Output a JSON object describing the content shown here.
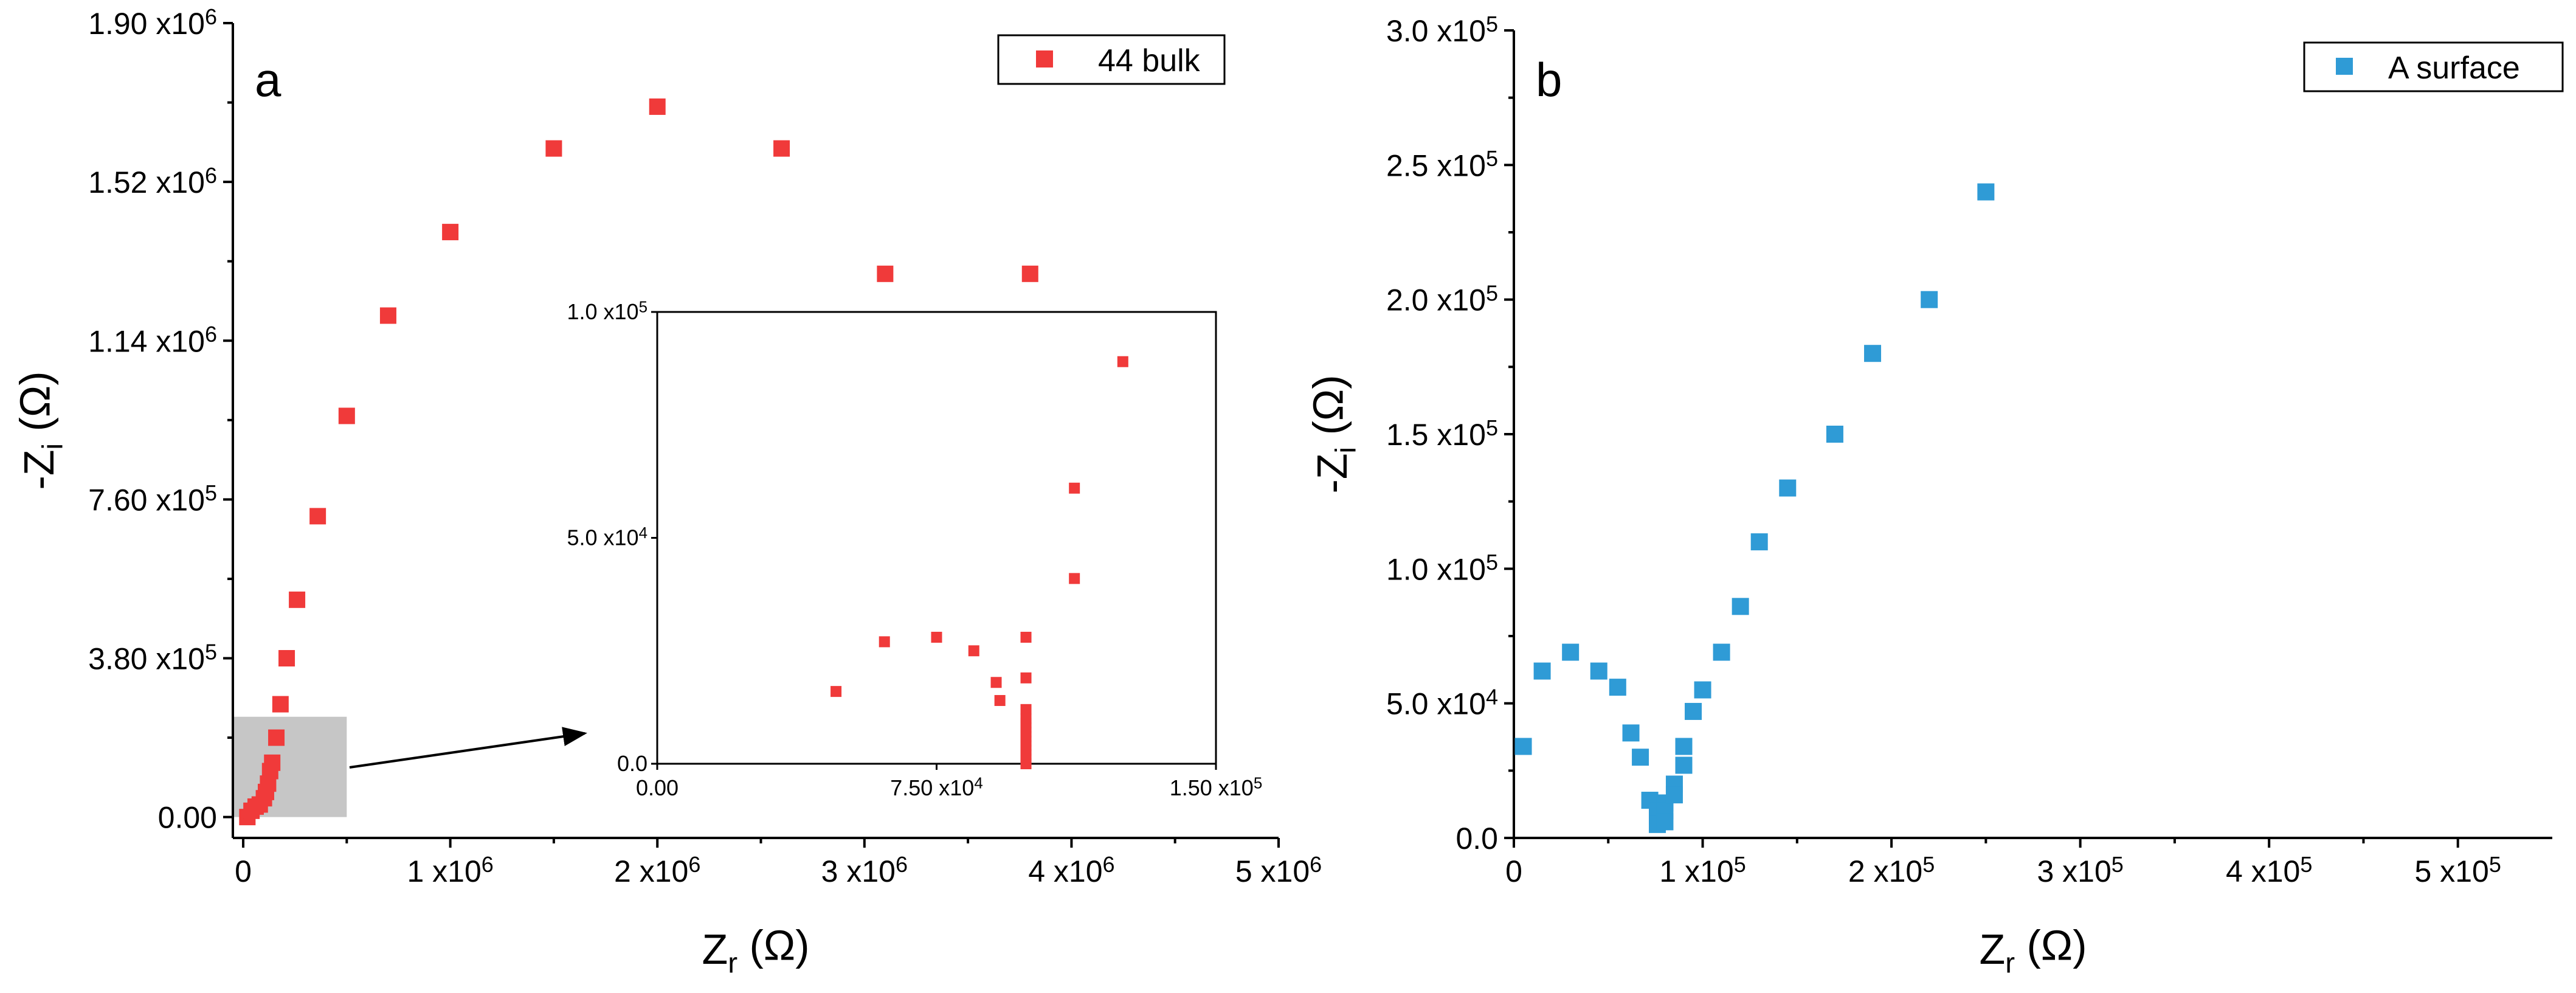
{
  "chart_data": [
    {
      "type": "scatter",
      "panel_label": "a",
      "xlabel_main": "Z",
      "xlabel_sub": "r",
      "xlabel_unit": " (Ω)",
      "ylabel_main": "-Z",
      "ylabel_sub": "i",
      "ylabel_unit": " (Ω)",
      "xlim": [
        -50000,
        5000000
      ],
      "ylim": [
        -50000,
        1900000
      ],
      "x_ticks": [
        {
          "value": 0,
          "label": "0"
        },
        {
          "value": 1000000,
          "label": "1 x10",
          "exp": "6"
        },
        {
          "value": 2000000,
          "label": "2 x10",
          "exp": "6"
        },
        {
          "value": 3000000,
          "label": "3 x10",
          "exp": "6"
        },
        {
          "value": 4000000,
          "label": "4 x10",
          "exp": "6"
        },
        {
          "value": 5000000,
          "label": "5 x10",
          "exp": "6"
        }
      ],
      "y_ticks": [
        {
          "value": 0,
          "label": "0.00"
        },
        {
          "value": 380000,
          "label": "3.80 x10",
          "exp": "5"
        },
        {
          "value": 760000,
          "label": "7.60 x10",
          "exp": "5"
        },
        {
          "value": 1140000,
          "label": "1.14 x10",
          "exp": "6"
        },
        {
          "value": 1520000,
          "label": "1.52 x10",
          "exp": "6"
        },
        {
          "value": 1900000,
          "label": "1.90 x10",
          "exp": "6"
        }
      ],
      "legend_label": "44 bulk",
      "legend_position": "top-right",
      "color": "#f03a3a",
      "series": [
        {
          "name": "44 bulk",
          "x": [
            20000,
            40000,
            60000,
            80000,
            100000,
            110000,
            120000,
            130000,
            140000,
            160000,
            180000,
            210000,
            260000,
            360000,
            500000,
            700000,
            1000000,
            1500000,
            2000000,
            2600000,
            3100000,
            3800000
          ],
          "y": [
            0,
            15000,
            25000,
            30000,
            45000,
            60000,
            80000,
            110000,
            130000,
            190000,
            270000,
            380000,
            520000,
            720000,
            960000,
            1200000,
            1400000,
            1600000,
            1700000,
            1600000,
            1300000,
            1300000
          ]
        }
      ],
      "highlight_region": {
        "x": [
          -50000,
          500000
        ],
        "y": [
          0,
          240000
        ]
      },
      "inset": {
        "xlim": [
          0,
          150000
        ],
        "ylim": [
          0,
          100000
        ],
        "x_ticks": [
          {
            "value": 0,
            "label": "0.00"
          },
          {
            "value": 75000,
            "label": "7.50 x10",
            "exp": "4"
          },
          {
            "value": 150000,
            "label": "1.50 x10",
            "exp": "5"
          }
        ],
        "y_ticks": [
          {
            "value": 0,
            "label": "0.0"
          },
          {
            "value": 50000,
            "label": "5.0 x10",
            "exp": "4"
          },
          {
            "value": 100000,
            "label": "1.0 x10",
            "exp": "5"
          }
        ],
        "series": [
          {
            "name": "44 bulk",
            "x": [
              48000,
              61000,
              75000,
              85000,
              91000,
              92000,
              99000,
              99000,
              99000,
              99000,
              99000,
              99000,
              99000,
              99000,
              99000,
              99000,
              99000,
              99000,
              99000,
              99000,
              112000,
              112000,
              125000
            ],
            "y": [
              16000,
              27000,
              28000,
              25000,
              18000,
              14000,
              28000,
              19000,
              12000,
              10000,
              9000,
              8000,
              7000,
              6000,
              5000,
              4000,
              3000,
              2000,
              1000,
              0,
              41000,
              61000,
              89000
            ]
          }
        ]
      }
    },
    {
      "type": "scatter",
      "panel_label": "b",
      "xlabel_main": "Z",
      "xlabel_sub": "r",
      "xlabel_unit": " (Ω)",
      "ylabel_main": "-Z",
      "ylabel_sub": "i",
      "ylabel_unit": " (Ω)",
      "xlim": [
        0,
        550000
      ],
      "ylim": [
        0,
        300000
      ],
      "x_ticks": [
        {
          "value": 0,
          "label": "0"
        },
        {
          "value": 100000,
          "label": "1 x10",
          "exp": "5"
        },
        {
          "value": 200000,
          "label": "2 x10",
          "exp": "5"
        },
        {
          "value": 300000,
          "label": "3 x10",
          "exp": "5"
        },
        {
          "value": 400000,
          "label": "4 x10",
          "exp": "5"
        },
        {
          "value": 500000,
          "label": "5 x10",
          "exp": "5"
        }
      ],
      "y_ticks": [
        {
          "value": 0,
          "label": "0.0"
        },
        {
          "value": 50000,
          "label": "5.0 x10",
          "exp": "4"
        },
        {
          "value": 100000,
          "label": "1.0 x10",
          "exp": "5"
        },
        {
          "value": 150000,
          "label": "1.5 x10",
          "exp": "5"
        },
        {
          "value": 200000,
          "label": "2.0 x10",
          "exp": "5"
        },
        {
          "value": 250000,
          "label": "2.5 x10",
          "exp": "5"
        },
        {
          "value": 300000,
          "label": "3.0 x10",
          "exp": "5"
        }
      ],
      "legend_label": "A surface",
      "legend_position": "top-right",
      "color": "#2f9bd6",
      "series": [
        {
          "name": "A surface",
          "x": [
            5000,
            15000,
            30000,
            45000,
            55000,
            62000,
            67000,
            72000,
            76000,
            76000,
            76000,
            80000,
            80000,
            80000,
            85000,
            85000,
            90000,
            90000,
            95000,
            100000,
            110000,
            120000,
            130000,
            145000,
            170000,
            190000,
            220000,
            250000
          ],
          "y": [
            34000,
            62000,
            69000,
            62000,
            56000,
            39000,
            30000,
            14000,
            10000,
            8000,
            5000,
            13000,
            10000,
            6000,
            20000,
            16000,
            34000,
            27000,
            47000,
            55000,
            69000,
            86000,
            110000,
            130000,
            150000,
            180000,
            200000,
            240000
          ]
        }
      ]
    }
  ]
}
